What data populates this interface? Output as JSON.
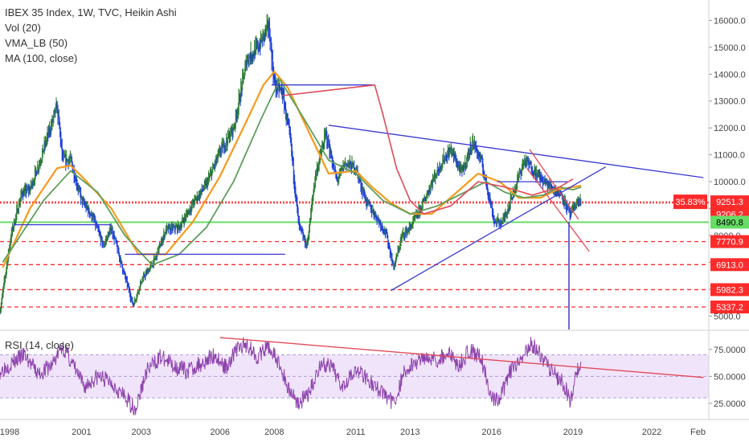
{
  "legend": {
    "title": "IBEX 35 Index, 1W, TVC, Heikin Ashi",
    "vol": "Vol (20)",
    "vma": "VMA_LB (50)",
    "ma": "MA (100, close)"
  },
  "rsi_label": "RSI (14, close)",
  "colors": {
    "up": "#2e7d32",
    "down": "#1e3fd8",
    "ma_orange": "#f59a1c",
    "vma_green": "#5e9e5a",
    "trend_blue": "#3a3ad0",
    "red_line": "#e04b5a",
    "rsi_purple": "#8e44ad",
    "rsi_band": "#f0e4fb",
    "green_line": "#66dd66",
    "label_red": "#ff2b2b"
  },
  "chart_data": [
    {
      "type": "line",
      "title": "IBEX 35 Index, 1W, TVC, Heikin Ashi",
      "xlabel": "",
      "ylabel": "",
      "x_ticks": [
        "1998",
        "2001",
        "2003",
        "2006",
        "2008",
        "2011",
        "2013",
        "2016",
        "2019",
        "2022",
        "Feb"
      ],
      "y_ticks": [
        "5000.0",
        "6000.0",
        "7000.0",
        "8000.0",
        "9000.0",
        "10000.0",
        "11000.0",
        "12000.0",
        "13000.0",
        "14000.0",
        "15000.0",
        "16000.0"
      ],
      "ylim": [
        4500,
        16700
      ],
      "xlim": [
        1997.9,
        2024.0
      ],
      "grid": false,
      "price": {
        "x": [
          1997.9,
          1998.3,
          1998.7,
          1999.0,
          1999.5,
          2000.0,
          2000.2,
          2000.5,
          2000.9,
          2001.3,
          2001.7,
          2002.0,
          2002.4,
          2002.8,
          2003.1,
          2003.6,
          2004.0,
          2004.5,
          2005.0,
          2005.5,
          2006.0,
          2006.5,
          2007.0,
          2007.4,
          2007.8,
          2008.0,
          2008.3,
          2008.6,
          2008.9,
          2009.2,
          2009.5,
          2009.9,
          2010.3,
          2010.6,
          2011.0,
          2011.4,
          2011.7,
          2012.1,
          2012.4,
          2012.7,
          2013.0,
          2013.4,
          2013.8,
          2014.2,
          2014.5,
          2014.9,
          2015.3,
          2015.6,
          2015.9,
          2016.1,
          2016.4,
          2016.8,
          2017.2,
          2017.5,
          2017.9,
          2018.2,
          2018.6,
          2018.9,
          2019.1,
          2019.3
        ],
        "y": [
          5200,
          8000,
          9600,
          9700,
          11200,
          12800,
          10800,
          10800,
          9300,
          8700,
          7600,
          8300,
          6800,
          5400,
          6300,
          7100,
          8200,
          8300,
          9200,
          9900,
          11100,
          12000,
          14600,
          15000,
          15800,
          13600,
          13300,
          11400,
          8300,
          7600,
          10200,
          11800,
          10000,
          10700,
          10500,
          9200,
          8800,
          8100,
          6800,
          8000,
          8300,
          9000,
          10000,
          10800,
          11200,
          10300,
          11500,
          10800,
          9500,
          8500,
          8500,
          9600,
          10800,
          10500,
          10000,
          9800,
          9500,
          8700,
          9200,
          9300
        ],
        "up_color": "#2e7d32",
        "down_color": "#1e3fd8"
      },
      "series": [
        {
          "name": "MA (100, close)",
          "x": [
            1998.0,
            1999.0,
            2000.0,
            2000.5,
            2001.0,
            2002.0,
            2003.0,
            2004.0,
            2005.0,
            2006.0,
            2007.0,
            2007.6,
            2008.0,
            2008.5,
            2009.2,
            2010.0,
            2011.0,
            2011.6,
            2012.3,
            2013.0,
            2013.8,
            2014.6,
            2015.5,
            2016.3,
            2017.0,
            2017.8,
            2018.4,
            2019.0,
            2019.3
          ],
          "y": [
            6800,
            9000,
            10500,
            10600,
            10100,
            9000,
            7300,
            7300,
            8500,
            10200,
            12300,
            13600,
            14100,
            13500,
            12000,
            10300,
            10400,
            9800,
            9200,
            8800,
            8800,
            9500,
            10300,
            10000,
            9400,
            9400,
            9700,
            9800,
            9850
          ]
        },
        {
          "name": "VMA_LB (50)",
          "x": [
            1998.0,
            1999.5,
            2000.5,
            2001.5,
            2002.5,
            2003.5,
            2004.5,
            2005.5,
            2006.5,
            2007.5,
            2008.2,
            2009.0,
            2010.0,
            2011.0,
            2012.0,
            2013.0,
            2014.0,
            2015.0,
            2015.8,
            2016.5,
            2017.2,
            2017.9,
            2018.5,
            2019.0,
            2019.3
          ],
          "y": [
            7000,
            9300,
            10400,
            9600,
            8000,
            6900,
            7300,
            8300,
            10000,
            12300,
            13800,
            12500,
            10800,
            10300,
            9300,
            8800,
            9100,
            9600,
            10000,
            9600,
            9400,
            9500,
            9800,
            9700,
            9800
          ]
        },
        {
          "name": "Horizontal level 14000 (blue)",
          "x": [
            2007.9,
            2011.7
          ],
          "y": [
            13600,
            13600
          ]
        },
        {
          "name": "Horizontal level 8400 (blue)",
          "x": [
            1998.4,
            2002.0
          ],
          "y": [
            8400,
            8400
          ]
        },
        {
          "name": "Horizontal level 7300 (blue)",
          "x": [
            2002.5,
            2008.4
          ],
          "y": [
            7300,
            7300
          ]
        },
        {
          "name": "Horizontal level 10000 (blue)",
          "x": [
            2016.2,
            2018.8
          ],
          "y": [
            10000,
            10000
          ]
        },
        {
          "name": "Descending trendline (blue)",
          "x": [
            2010.0,
            2023.8
          ],
          "y": [
            12100,
            10150
          ]
        },
        {
          "name": "Ascending trendline (blue)",
          "x": [
            2012.3,
            2020.2
          ],
          "y": [
            5950,
            10550
          ]
        },
        {
          "name": "Red channel upper",
          "x": [
            2017.4,
            2019.2
          ],
          "y": [
            11200,
            8600
          ]
        },
        {
          "name": "Red channel lower",
          "x": [
            2017.3,
            2019.6
          ],
          "y": [
            10500,
            7400
          ]
        },
        {
          "name": "Red smoothed level",
          "x": [
            2008.3,
            2011.7,
            2012.0,
            2012.5,
            2013.0,
            2013.5,
            2014.5,
            2015.5,
            2016.5,
            2017.5,
            2018.5,
            2019.0
          ],
          "y": [
            13200,
            13600,
            12500,
            10500,
            9300,
            8800,
            9100,
            10000,
            9800,
            9500,
            9800,
            10100
          ]
        }
      ],
      "horizontal_levels": [
        {
          "label": "9251.3",
          "value": 9251.3,
          "color": "#ff2b2b",
          "style": "dotted"
        },
        {
          "label": "9206.2",
          "value": 9206.2,
          "color": "#ff2b2b",
          "style": "dotted"
        },
        {
          "label": "8490.8",
          "value": 8490.8,
          "color": "#66dd66",
          "style": "solid"
        },
        {
          "label": "7770.9",
          "value": 7770.9,
          "color": "#ff2b2b",
          "style": "dashed"
        },
        {
          "label": "6913.0",
          "value": 6913.0,
          "color": "#ff2b2b",
          "style": "dashed"
        },
        {
          "label": "5982.3",
          "value": 5982.3,
          "color": "#ff2b2b",
          "style": "dashed"
        },
        {
          "label": "5337.2",
          "value": 5337.2,
          "color": "#ff2b2b",
          "style": "dashed"
        }
      ],
      "percent_label": "35.83%",
      "vertical_marker": {
        "x": 2018.85,
        "y_top": 8500,
        "y_bottom": 4500
      }
    },
    {
      "type": "line",
      "title": "RSI (14, close)",
      "xlabel": "",
      "ylabel": "",
      "y_ticks": [
        "25.0000",
        "50.0000",
        "75.0000"
      ],
      "ylim": [
        10,
        92
      ],
      "band": [
        30,
        70
      ],
      "series": [
        {
          "name": "RSI (14, close)",
          "x": [
            1997.9,
            1998.3,
            1998.8,
            1999.3,
            1999.8,
            2000.2,
            2000.6,
            2001.0,
            2001.5,
            2002.0,
            2002.5,
            2002.9,
            2003.3,
            2003.8,
            2004.3,
            2004.8,
            2005.3,
            2005.8,
            2006.2,
            2006.6,
            2007.0,
            2007.4,
            2007.8,
            2008.2,
            2008.5,
            2008.9,
            2009.3,
            2009.7,
            2010.1,
            2010.5,
            2010.9,
            2011.3,
            2011.7,
            2012.0,
            2012.4,
            2012.8,
            2013.2,
            2013.6,
            2014.0,
            2014.4,
            2014.8,
            2015.2,
            2015.6,
            2016.0,
            2016.3,
            2016.7,
            2017.1,
            2017.4,
            2017.8,
            2018.2,
            2018.6,
            2018.9,
            2019.1,
            2019.3
          ],
          "y": [
            55,
            62,
            70,
            52,
            60,
            78,
            60,
            40,
            50,
            45,
            30,
            20,
            55,
            68,
            60,
            55,
            62,
            70,
            58,
            75,
            80,
            68,
            78,
            60,
            40,
            25,
            35,
            62,
            58,
            42,
            55,
            52,
            40,
            35,
            25,
            55,
            62,
            70,
            65,
            72,
            60,
            75,
            68,
            30,
            28,
            55,
            62,
            82,
            70,
            55,
            45,
            28,
            50,
            62
          ]
        },
        {
          "name": "RSI trendline (red)",
          "x": [
            2006.0,
            2023.8
          ],
          "y": [
            86,
            49
          ]
        }
      ]
    }
  ]
}
